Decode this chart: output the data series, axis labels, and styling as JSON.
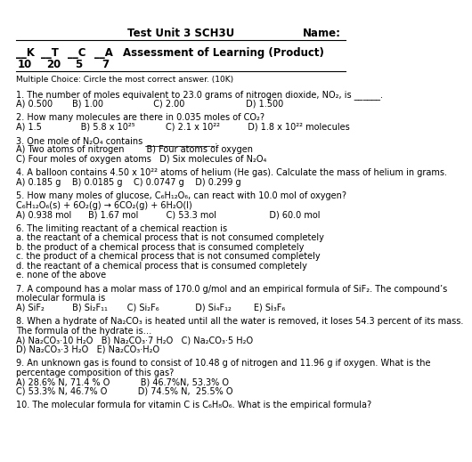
{
  "bg_color": "#ffffff",
  "text_color": "#000000",
  "title_center": "Test Unit 3 SCH3U",
  "title_right": "Name:",
  "kline": "__K   __T   __C   __A   Assessment of Learning (Product)",
  "nums": [
    "10",
    "20",
    "5",
    "7"
  ],
  "mc_header": "Multiple Choice: Circle the most correct answer. (10K)",
  "lines": [
    {
      "text": "1. The number of moles equivalent to 23.0 grams of nitrogen dioxide, NO₂, is ______.",
      "indent": 0
    },
    {
      "text": "A) 0.500       B) 1.00                  C) 2.00                      D) 1.500",
      "indent": 0
    },
    {
      "text": "",
      "indent": 0
    },
    {
      "text": "2. How many molecules are there in 0.035 moles of CO₂?",
      "indent": 0
    },
    {
      "text": "A) 1.5              B) 5.8 x 10²⁵           C) 2.1 x 10²²          D) 1.8 x 10²² molecules",
      "indent": 0
    },
    {
      "text": "",
      "indent": 0
    },
    {
      "text": "3. One mole of N₂O₄ contains ________________.",
      "indent": 0
    },
    {
      "text": "A) Two atoms of nitrogen        B) Four atoms of oxygen",
      "indent": 0
    },
    {
      "text": "C) Four moles of oxygen atoms   D) Six molecules of N₂O₄",
      "indent": 0
    },
    {
      "text": "",
      "indent": 0
    },
    {
      "text": "4. A balloon contains 4.50 x 10²² atoms of helium (He gas). Calculate the mass of helium in grams.",
      "indent": 0
    },
    {
      "text": "A) 0.185 g    B) 0.0185 g    C) 0.0747 g    D) 0.299 g",
      "indent": 0
    },
    {
      "text": "",
      "indent": 0
    },
    {
      "text": "5. How many moles of glucose, C₆H₁₂O₆, can react with 10.0 mol of oxygen?",
      "indent": 0
    },
    {
      "text": "C₆H₁₂O₆(s) + 6O₂(g) → 6CO₂(g) + 6H₂O(l)",
      "indent": 0
    },
    {
      "text": "A) 0.938 mol      B) 1.67 mol          C) 53.3 mol                   D) 60.0 mol",
      "indent": 0
    },
    {
      "text": "",
      "indent": 0
    },
    {
      "text": "6. The limiting reactant of a chemical reaction is",
      "indent": 0
    },
    {
      "text": "a. the reactant of a chemical process that is not consumed completely",
      "indent": 0
    },
    {
      "text": "b. the product of a chemical process that is consumed completely",
      "indent": 0
    },
    {
      "text": "c. the product of a chemical process that is not consumed completely",
      "indent": 0
    },
    {
      "text": "d. the reactant of a chemical process that is consumed completely",
      "indent": 0
    },
    {
      "text": "e. none of the above",
      "indent": 0
    },
    {
      "text": "",
      "indent": 0
    },
    {
      "text": "7. A compound has a molar mass of 170.0 g/mol and an empirical formula of SiF₂. The compound’s",
      "indent": 0
    },
    {
      "text": "molecular formula is",
      "indent": 0
    },
    {
      "text": "A) SiF₂          B) Si₂F₁₁       C) Si₂F₆             D) Si₄F₁₂        E) Si₃F₆",
      "indent": 0
    },
    {
      "text": "",
      "indent": 0
    },
    {
      "text": "8. When a hydrate of Na₂CO₃ is heated until all the water is removed, it loses 54.3 percent of its mass.",
      "indent": 0
    },
    {
      "text": "The formula of the hydrate is…",
      "indent": 0
    },
    {
      "text": "A) Na₂CO₃·10 H₂O   B) Na₂CO₃·7 H₂O   C) Na₂CO₃·5 H₂O",
      "indent": 0
    },
    {
      "text": "D) Na₂CO₃·3 H₂O   E) Na₂CO₃·H₂O",
      "indent": 0
    },
    {
      "text": "",
      "indent": 0
    },
    {
      "text": "9. An unknown gas is found to consist of 10.48 g of nitrogen and 11.96 g if oxygen. What is the",
      "indent": 0
    },
    {
      "text": "percentage composition of this gas?",
      "indent": 0
    },
    {
      "text": "A) 28.6% N, 71.4 % O           B) 46.7%N, 53.3% O",
      "indent": 0
    },
    {
      "text": "C) 53.3% N, 46.7% O           D) 74.5% N,  25.5% O",
      "indent": 0
    },
    {
      "text": "",
      "indent": 0
    },
    {
      "text": "10. The molecular formula for vitamin C is C₆H₈O₆. What is the empirical formula?",
      "indent": 0
    }
  ]
}
